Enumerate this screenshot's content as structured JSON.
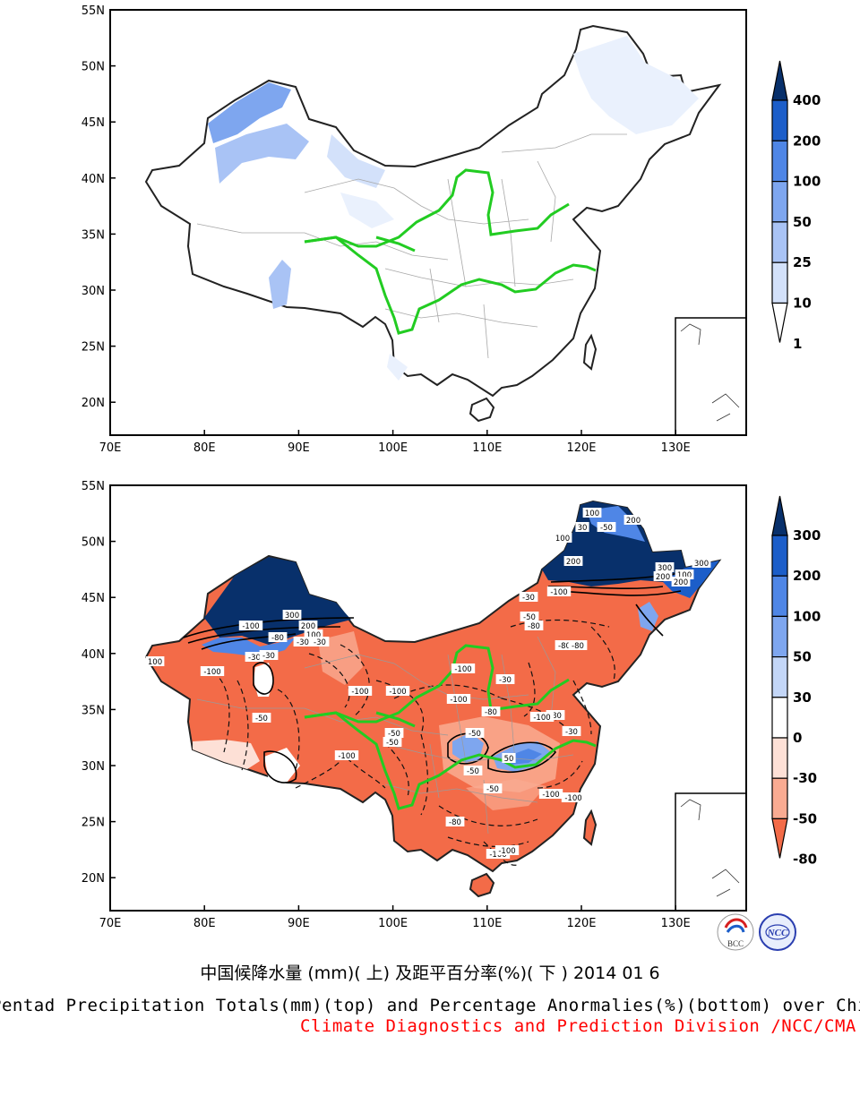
{
  "top_map": {
    "lat_labels": [
      "55N",
      "50N",
      "45N",
      "40N",
      "35N",
      "30N",
      "25N",
      "20N"
    ],
    "lat_values": [
      55,
      50,
      45,
      40,
      35,
      30,
      25,
      20
    ],
    "lon_labels": [
      "70E",
      "80E",
      "90E",
      "100E",
      "110E",
      "120E",
      "130E"
    ],
    "lon_values": [
      70,
      80,
      90,
      100,
      110,
      120,
      130
    ],
    "colorbar": {
      "labels": [
        "400",
        "200",
        "100",
        "50",
        "25",
        "10",
        "1"
      ],
      "colors": [
        "#08306b",
        "#1c5ec9",
        "#4f86e6",
        "#7ea6ef",
        "#a9c3f5",
        "#d3e1fa",
        "#ffffff"
      ]
    }
  },
  "bottom_map": {
    "lat_labels": [
      "55N",
      "50N",
      "45N",
      "40N",
      "35N",
      "30N",
      "25N",
      "20N"
    ],
    "lat_values": [
      55,
      50,
      45,
      40,
      35,
      30,
      25,
      20
    ],
    "lon_labels": [
      "70E",
      "80E",
      "90E",
      "100E",
      "110E",
      "120E",
      "130E"
    ],
    "lon_values": [
      70,
      80,
      90,
      100,
      110,
      120,
      130
    ],
    "colorbar": {
      "labels": [
        "300",
        "200",
        "100",
        "50",
        "30",
        "0",
        "-30",
        "-50",
        "-80"
      ],
      "colors": [
        "#08306b",
        "#1c5ec9",
        "#4f86e6",
        "#7ea6ef",
        "#c3d6f7",
        "#ffffff",
        "#fde0d6",
        "#f9ab92",
        "#f36b48"
      ]
    },
    "contour_labels": [
      "100",
      "200",
      "100",
      "30",
      "-50",
      "200",
      "300",
      "100",
      "200",
      "300",
      "200",
      "-50",
      "-30",
      "-80",
      "-100",
      "-80",
      "-80",
      "300",
      "200",
      "100",
      "-100",
      "-80",
      "-30",
      "-30",
      "100",
      "-100",
      "-30",
      "-30",
      "-100",
      "-30",
      "-100",
      "-100",
      "-100",
      "-100",
      "-100",
      "-80",
      "-50",
      "-50",
      "-50",
      "-100",
      "-80",
      "-100",
      "-30",
      "-50",
      "50",
      "-50",
      "-50",
      "-100",
      "-80",
      "-100"
    ]
  },
  "captions": {
    "chinese_title": "中国候降水量 (mm)( 上) 及距平百分率(%)( 下 ) 2014 01 6",
    "english_title": "Pentad Precipitation Totals(mm)(top) and Percentage Anormalies(%)(bottom) over China",
    "organization": "Climate Diagnostics and Prediction Division /NCC/CMA"
  },
  "logos": {
    "bcc_text": "BCC",
    "ncc_text": "NCC"
  },
  "colors": {
    "river": "#22cc22",
    "organization_text": "#ff0000",
    "border": "#222222",
    "province": "#a8a8a8"
  }
}
